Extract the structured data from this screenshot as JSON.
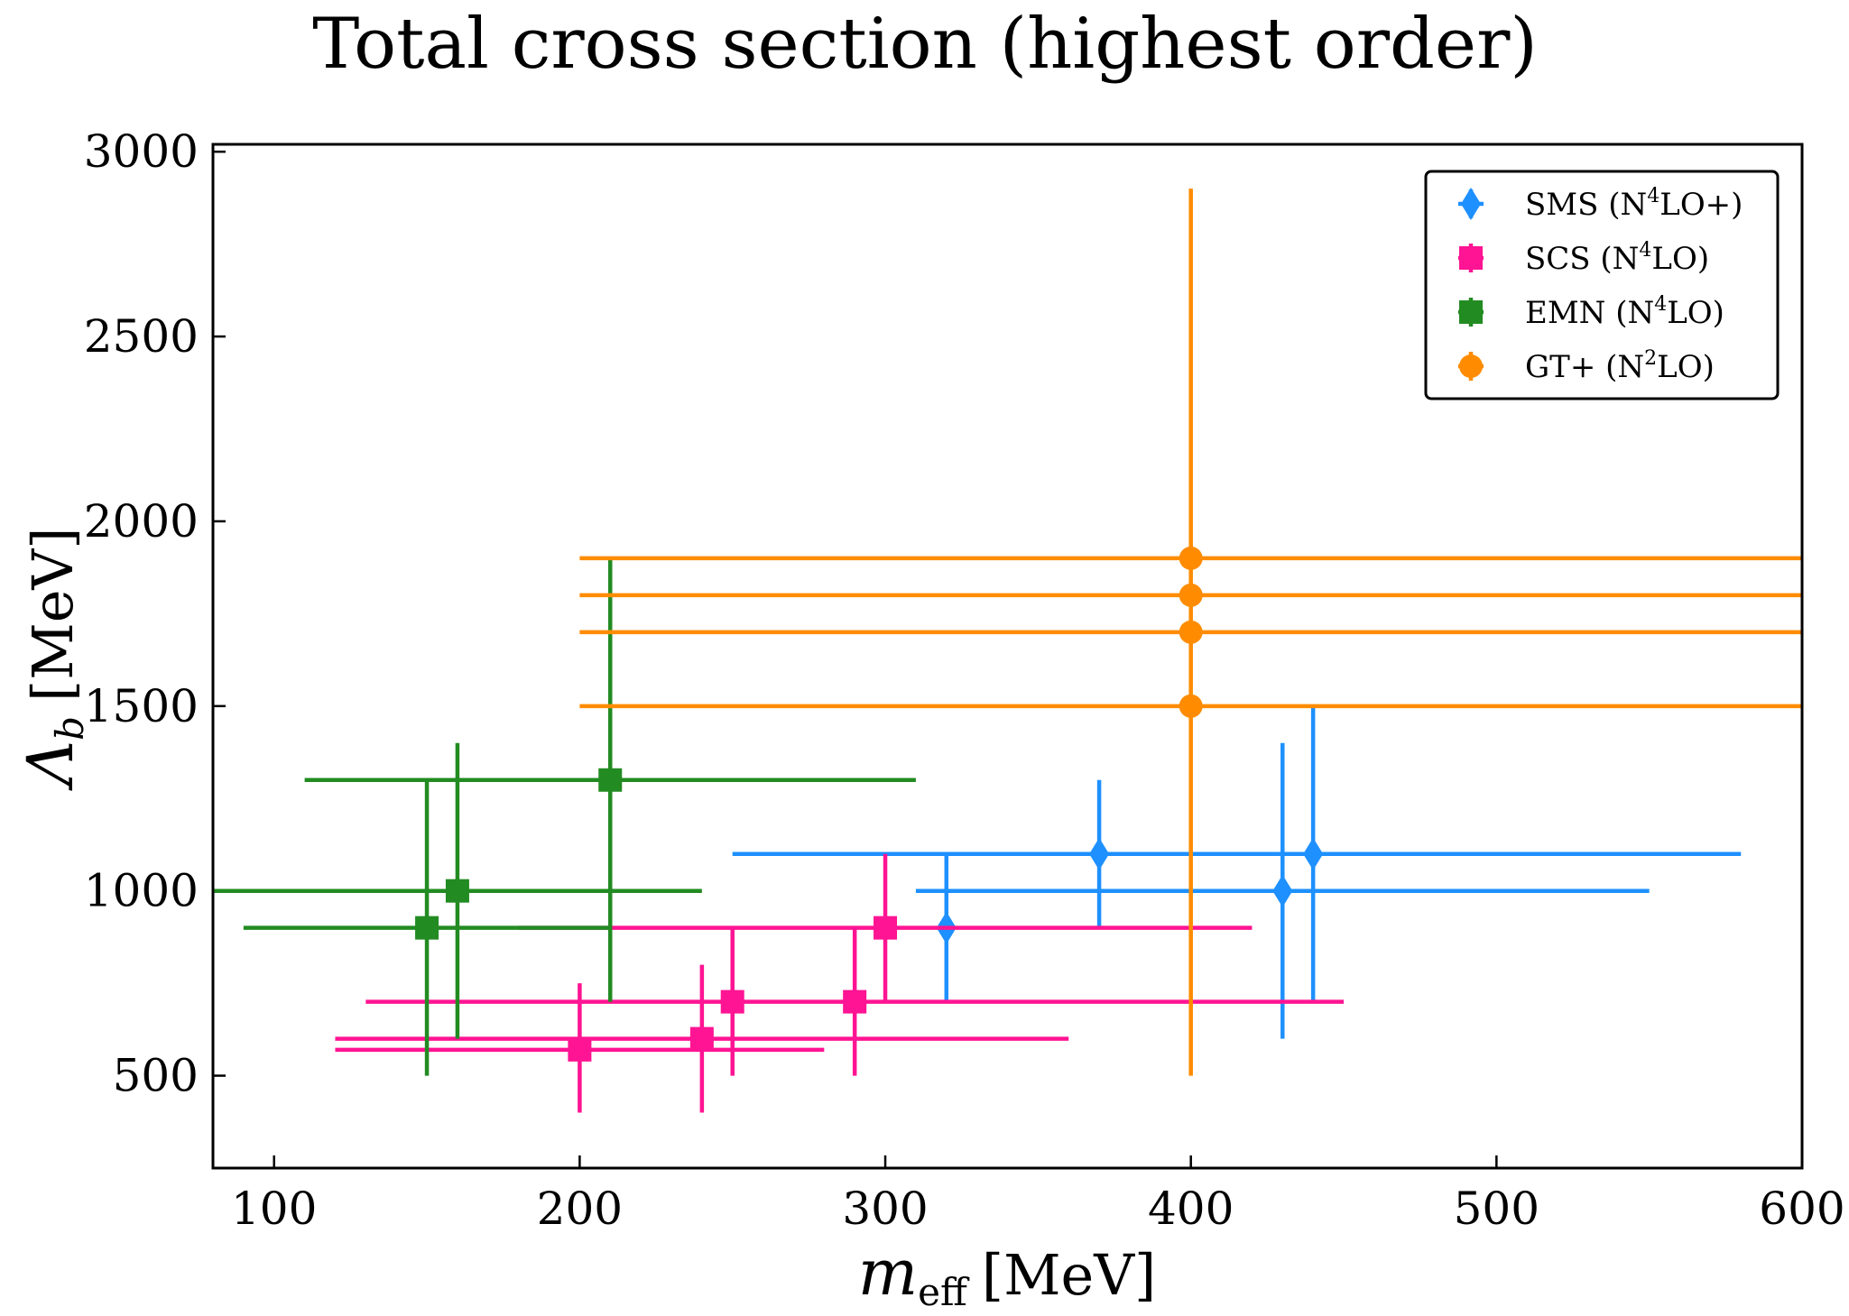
{
  "chart_data": {
    "type": "scatter",
    "title": "Total cross section (highest order)",
    "xlabel": "m_eff [MeV]",
    "xlabel_main": "m",
    "xlabel_sub": "eff",
    "xlabel_unit": "[MeV]",
    "ylabel": "Λ_b [MeV]",
    "ylabel_main": "Λ",
    "ylabel_sub": "b",
    "ylabel_unit": "[MeV]",
    "xlim": [
      80,
      600
    ],
    "ylim": [
      250,
      3020
    ],
    "xticks": [
      100,
      200,
      300,
      400,
      500,
      600
    ],
    "yticks": [
      500,
      1000,
      1500,
      2000,
      2500,
      3000
    ],
    "legend_position": "top-right",
    "series": [
      {
        "name": "SMS (N4LO+)",
        "label_parts": [
          "SMS (N",
          "4",
          "LO+)"
        ],
        "color": "#1e90ff",
        "marker": "diamond",
        "points": [
          {
            "x": 320,
            "y": 900,
            "x_lo": 320,
            "x_hi": 320,
            "y_lo": 700,
            "y_hi": 1100
          },
          {
            "x": 370,
            "y": 1100,
            "x_lo": 250,
            "x_hi": 580,
            "y_lo": 900,
            "y_hi": 1300
          },
          {
            "x": 430,
            "y": 1000,
            "x_lo": 310,
            "x_hi": 550,
            "y_lo": 600,
            "y_hi": 1400
          },
          {
            "x": 440,
            "y": 1100,
            "x_lo": 440,
            "x_hi": 440,
            "y_lo": 700,
            "y_hi": 1500
          }
        ]
      },
      {
        "name": "SCS (N4LO)",
        "label_parts": [
          "SCS (N",
          "4",
          "LO)"
        ],
        "color": "#ff1493",
        "marker": "square",
        "points": [
          {
            "x": 200,
            "y": 570,
            "x_lo": 120,
            "x_hi": 280,
            "y_lo": 400,
            "y_hi": 750
          },
          {
            "x": 240,
            "y": 600,
            "x_lo": 120,
            "x_hi": 360,
            "y_lo": 400,
            "y_hi": 800
          },
          {
            "x": 250,
            "y": 700,
            "x_lo": 250,
            "x_hi": 250,
            "y_lo": 500,
            "y_hi": 900
          },
          {
            "x": 290,
            "y": 700,
            "x_lo": 130,
            "x_hi": 450,
            "y_lo": 500,
            "y_hi": 900
          },
          {
            "x": 300,
            "y": 900,
            "x_lo": 180,
            "x_hi": 420,
            "y_lo": 700,
            "y_hi": 1100
          }
        ]
      },
      {
        "name": "EMN (N4LO)",
        "label_parts": [
          "EMN (N",
          "4",
          "LO)"
        ],
        "color": "#228b22",
        "marker": "square",
        "points": [
          {
            "x": 150,
            "y": 900,
            "x_lo": 90,
            "x_hi": 210,
            "y_lo": 500,
            "y_hi": 1300
          },
          {
            "x": 160,
            "y": 1000,
            "x_lo": 80,
            "x_hi": 240,
            "y_lo": 600,
            "y_hi": 1400
          },
          {
            "x": 210,
            "y": 1300,
            "x_lo": 110,
            "x_hi": 310,
            "y_lo": 700,
            "y_hi": 1900
          }
        ]
      },
      {
        "name": "GT+ (N2LO)",
        "label_parts": [
          "GT+ (N",
          "2",
          "LO)"
        ],
        "color": "#ff8c00",
        "marker": "circle",
        "points": [
          {
            "x": 400,
            "y": 1500,
            "x_lo": 200,
            "x_hi": 600,
            "y_lo": 500,
            "y_hi": 2900
          },
          {
            "x": 400,
            "y": 1700,
            "x_lo": 200,
            "x_hi": 600,
            "y_lo": 1700,
            "y_hi": 1700
          },
          {
            "x": 400,
            "y": 1800,
            "x_lo": 200,
            "x_hi": 600,
            "y_lo": 1800,
            "y_hi": 1800
          },
          {
            "x": 400,
            "y": 1900,
            "x_lo": 200,
            "x_hi": 600,
            "y_lo": 1900,
            "y_hi": 1900
          }
        ]
      }
    ]
  }
}
